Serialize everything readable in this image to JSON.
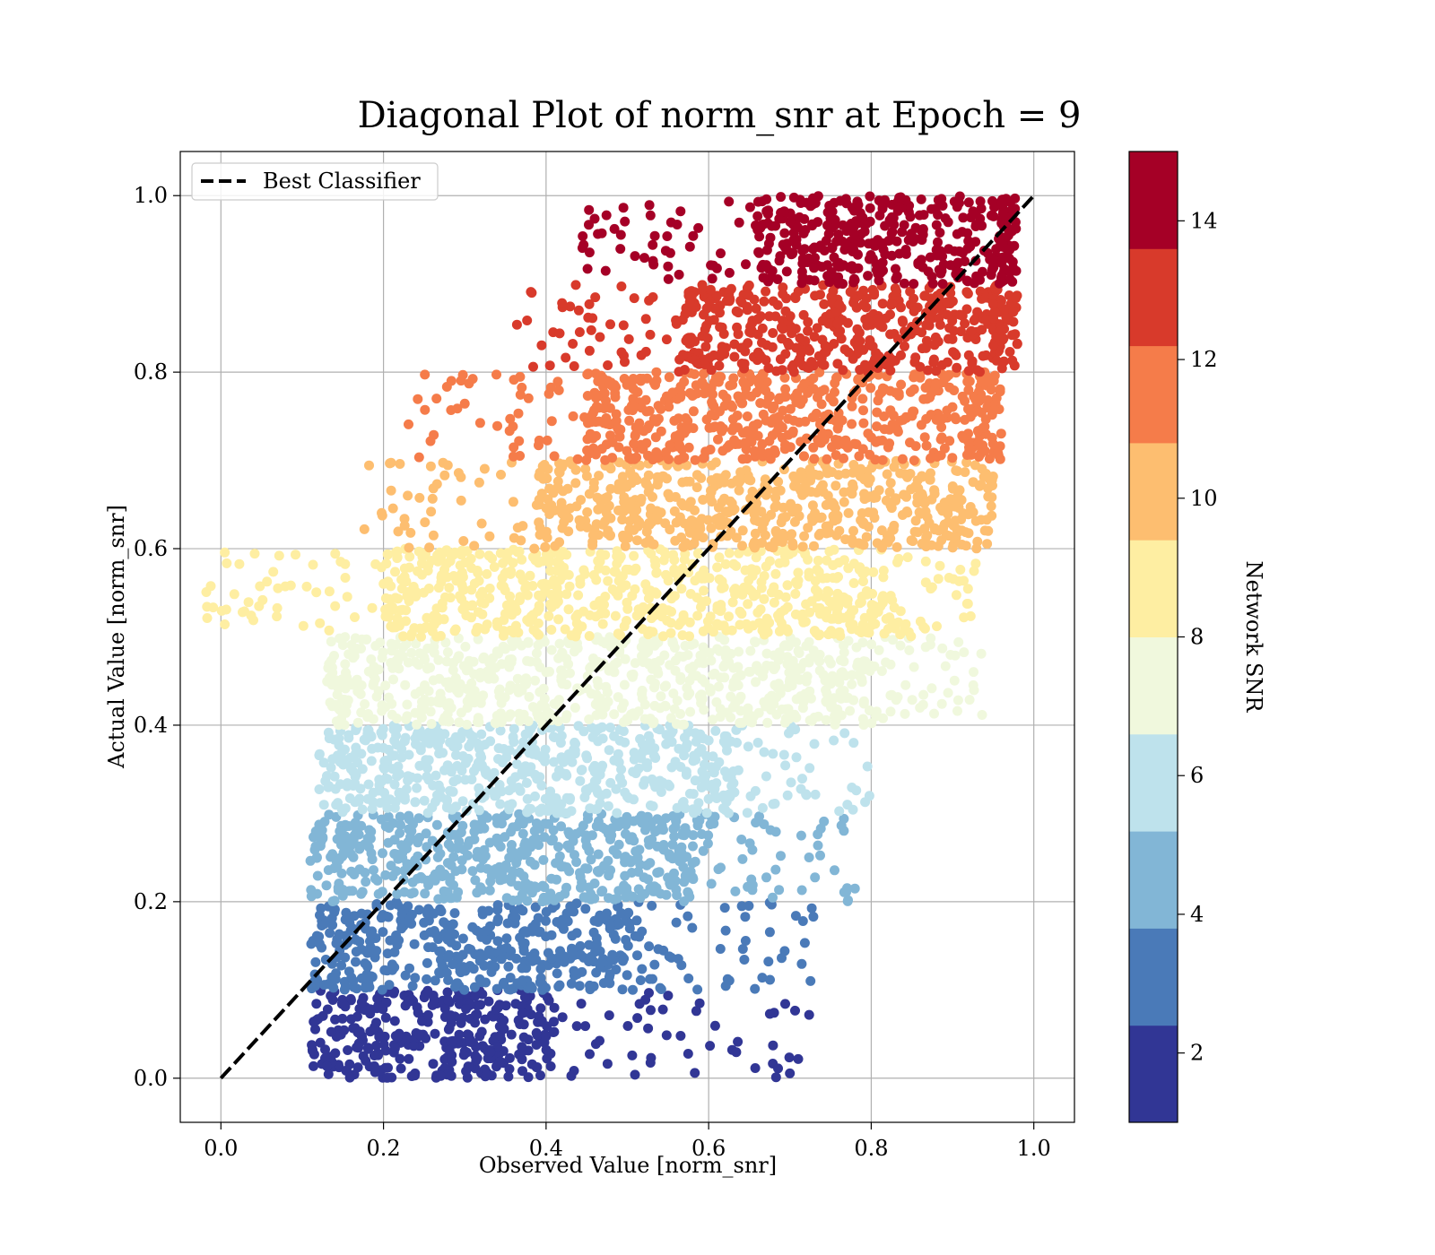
{
  "chart_data": {
    "type": "scatter",
    "title": "Diagonal Plot of norm_snr at Epoch = 9",
    "xlabel": "Observed Value [norm_snr]",
    "ylabel": "Actual Value [norm_snr]",
    "xlim": [
      -0.05,
      1.05
    ],
    "ylim": [
      -0.05,
      1.05
    ],
    "xticks": [
      {
        "value": 0.0,
        "label": "0.0"
      },
      {
        "value": 0.2,
        "label": "0.2"
      },
      {
        "value": 0.4,
        "label": "0.4"
      },
      {
        "value": 0.6,
        "label": "0.6"
      },
      {
        "value": 0.8,
        "label": "0.8"
      },
      {
        "value": 1.0,
        "label": "1.0"
      }
    ],
    "yticks": [
      {
        "value": 0.0,
        "label": "0.0"
      },
      {
        "value": 0.2,
        "label": "0.2"
      },
      {
        "value": 0.4,
        "label": "0.4"
      },
      {
        "value": 0.6,
        "label": "0.6"
      },
      {
        "value": 0.8,
        "label": "0.8"
      },
      {
        "value": 1.0,
        "label": "1.0"
      }
    ],
    "grid": true,
    "legend": {
      "placement": "top-left",
      "entries": [
        {
          "label": "Best Classifier",
          "style": "dashed",
          "color": "#000000"
        }
      ]
    },
    "reference_line": {
      "name": "Best Classifier",
      "x": [
        0.0,
        1.0
      ],
      "y": [
        0.0,
        1.0
      ]
    },
    "colorbar": {
      "label": "Network SNR",
      "range": [
        1,
        15
      ],
      "ticks": [
        {
          "value": 2,
          "label": "2"
        },
        {
          "value": 4,
          "label": "4"
        },
        {
          "value": 6,
          "label": "6"
        },
        {
          "value": 8,
          "label": "8"
        },
        {
          "value": 10,
          "label": "10"
        },
        {
          "value": 12,
          "label": "12"
        },
        {
          "value": 14,
          "label": "14"
        }
      ],
      "colors": [
        "#313695",
        "#4a7ab8",
        "#82b6d6",
        "#bee2ec",
        "#f0f8dd",
        "#feeea2",
        "#fdbe70",
        "#f57c4a",
        "#d83a2b",
        "#a50026"
      ]
    },
    "bands": [
      {
        "y_range": [
          0.0,
          0.1
        ],
        "x_core": [
          0.11,
          0.4
        ],
        "x_tail": 0.72,
        "color": "#313695"
      },
      {
        "y_range": [
          0.1,
          0.2
        ],
        "x_core": [
          0.11,
          0.5
        ],
        "x_tail": 0.72,
        "color": "#4a7ab8"
      },
      {
        "y_range": [
          0.2,
          0.3
        ],
        "x_core": [
          0.11,
          0.58
        ],
        "x_tail": 0.76,
        "color": "#82b6d6"
      },
      {
        "y_range": [
          0.3,
          0.4
        ],
        "x_core": [
          0.12,
          0.62
        ],
        "x_tail": 0.78,
        "color": "#bee2ec"
      },
      {
        "y_range": [
          0.4,
          0.5
        ],
        "x_core": [
          0.13,
          0.79
        ],
        "x_tail": 0.92,
        "color": "#f0f8dd"
      },
      {
        "y_range": [
          0.5,
          0.6
        ],
        "x_core": [
          0.2,
          0.8
        ],
        "x_tail": 0.92,
        "color": "#feeea2"
      },
      {
        "y_range": [
          0.6,
          0.7
        ],
        "x_core": [
          0.39,
          0.9
        ],
        "x_tail": 0.93,
        "color": "#fdbe70"
      },
      {
        "y_range": [
          0.7,
          0.8
        ],
        "x_core": [
          0.45,
          0.93
        ],
        "x_tail": 0.94,
        "color": "#f57c4a"
      },
      {
        "y_range": [
          0.8,
          0.9
        ],
        "x_core": [
          0.57,
          0.95
        ],
        "x_tail": 0.96,
        "color": "#d83a2b"
      },
      {
        "y_range": [
          0.9,
          1.0
        ],
        "x_core": [
          0.66,
          0.96
        ],
        "x_tail": 0.96,
        "color": "#a50026"
      }
    ]
  }
}
